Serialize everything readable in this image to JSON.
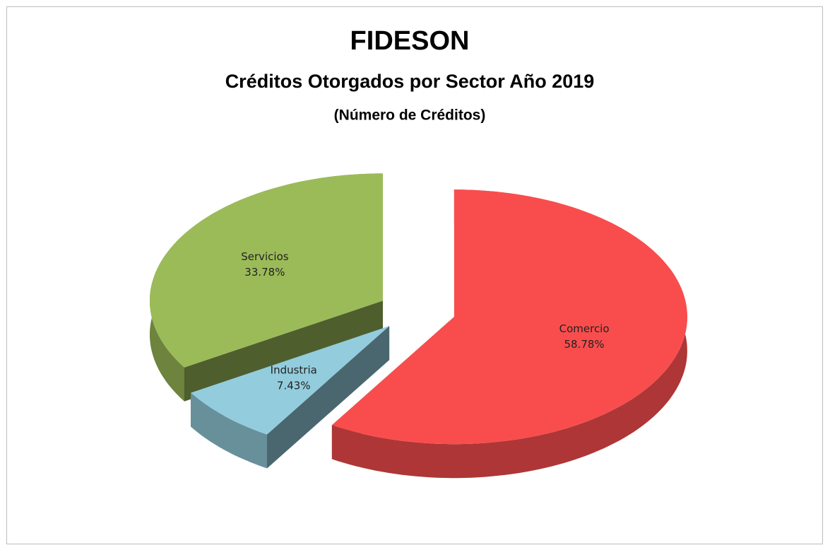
{
  "chart_data": {
    "type": "pie3d",
    "title": "FIDESON",
    "subtitle": "Créditos Otorgados por Sector Año 2019",
    "subtitle2": "(Número de Créditos)",
    "categories": [
      "Comercio",
      "Industria",
      "Servicios"
    ],
    "values": [
      58.78,
      7.43,
      33.78
    ],
    "value_labels": [
      "58.78%",
      "7.43%",
      "33.78%"
    ],
    "colors": [
      "#f94d4d",
      "#93cddd",
      "#9bbb59"
    ]
  }
}
